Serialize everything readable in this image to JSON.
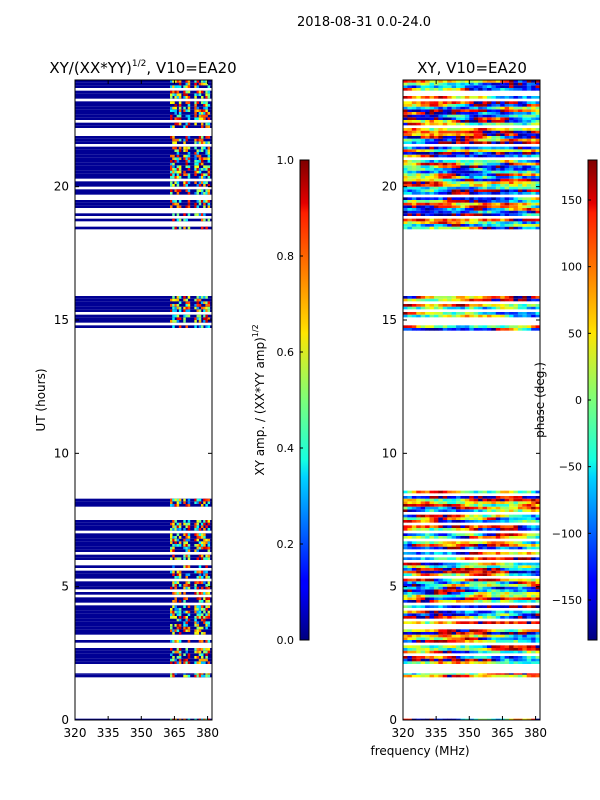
{
  "figure": {
    "suptitle": "2018-08-31 0.0-24.0",
    "xlabel": "frequency (MHz)",
    "ylabel": "UT (hours)"
  },
  "chart_data": [
    {
      "type": "heatmap",
      "title_main": "XY/(XX*YY)",
      "title_exp": "1/2",
      "title_tail": ", V10=EA20",
      "xlim": [
        320,
        382
      ],
      "ylim": [
        0,
        24
      ],
      "xticks": [
        320,
        335,
        350,
        365,
        380
      ],
      "yticks": [
        0,
        5,
        10,
        15,
        20
      ],
      "colormap": "jet",
      "colorbar": {
        "label_main": "XY amp. / (XX*YY amp)",
        "label_exp": "1/2",
        "range": [
          0.0,
          1.0
        ],
        "ticks": [
          "0.0",
          "0.2",
          "0.4",
          "0.6",
          "0.8",
          "1.0"
        ],
        "tick_values": [
          0.0,
          0.2,
          0.4,
          0.6,
          0.8,
          1.0
        ]
      },
      "data_bands_ut": [
        [
          0.0,
          0.05
        ],
        [
          1.6,
          1.75
        ],
        [
          2.1,
          2.8
        ],
        [
          2.9,
          8.6
        ],
        [
          14.6,
          15.9
        ],
        [
          18.4,
          24.0
        ]
      ],
      "bright_channels_mhz": [
        [
          363,
          368
        ],
        [
          369,
          372
        ],
        [
          374,
          381
        ]
      ],
      "baseline_value": 0.02
    },
    {
      "type": "heatmap",
      "title_main": "XY, V10=EA20",
      "xlim": [
        320,
        382
      ],
      "ylim": [
        0,
        24
      ],
      "xticks": [
        320,
        335,
        350,
        365,
        380
      ],
      "yticks": [
        0,
        5,
        10,
        15,
        20
      ],
      "colormap": "jet",
      "colorbar": {
        "label_main": "phase (deg.)",
        "range": [
          -180,
          180
        ],
        "ticks": [
          "−150",
          "−100",
          "−50",
          "0",
          "50",
          "100",
          "150"
        ],
        "tick_values": [
          -150,
          -100,
          -50,
          0,
          50,
          100,
          150
        ]
      },
      "data_bands_ut": [
        [
          0.0,
          0.05
        ],
        [
          1.6,
          1.75
        ],
        [
          2.1,
          8.6
        ],
        [
          14.6,
          15.9
        ],
        [
          18.4,
          24.0
        ]
      ]
    }
  ]
}
